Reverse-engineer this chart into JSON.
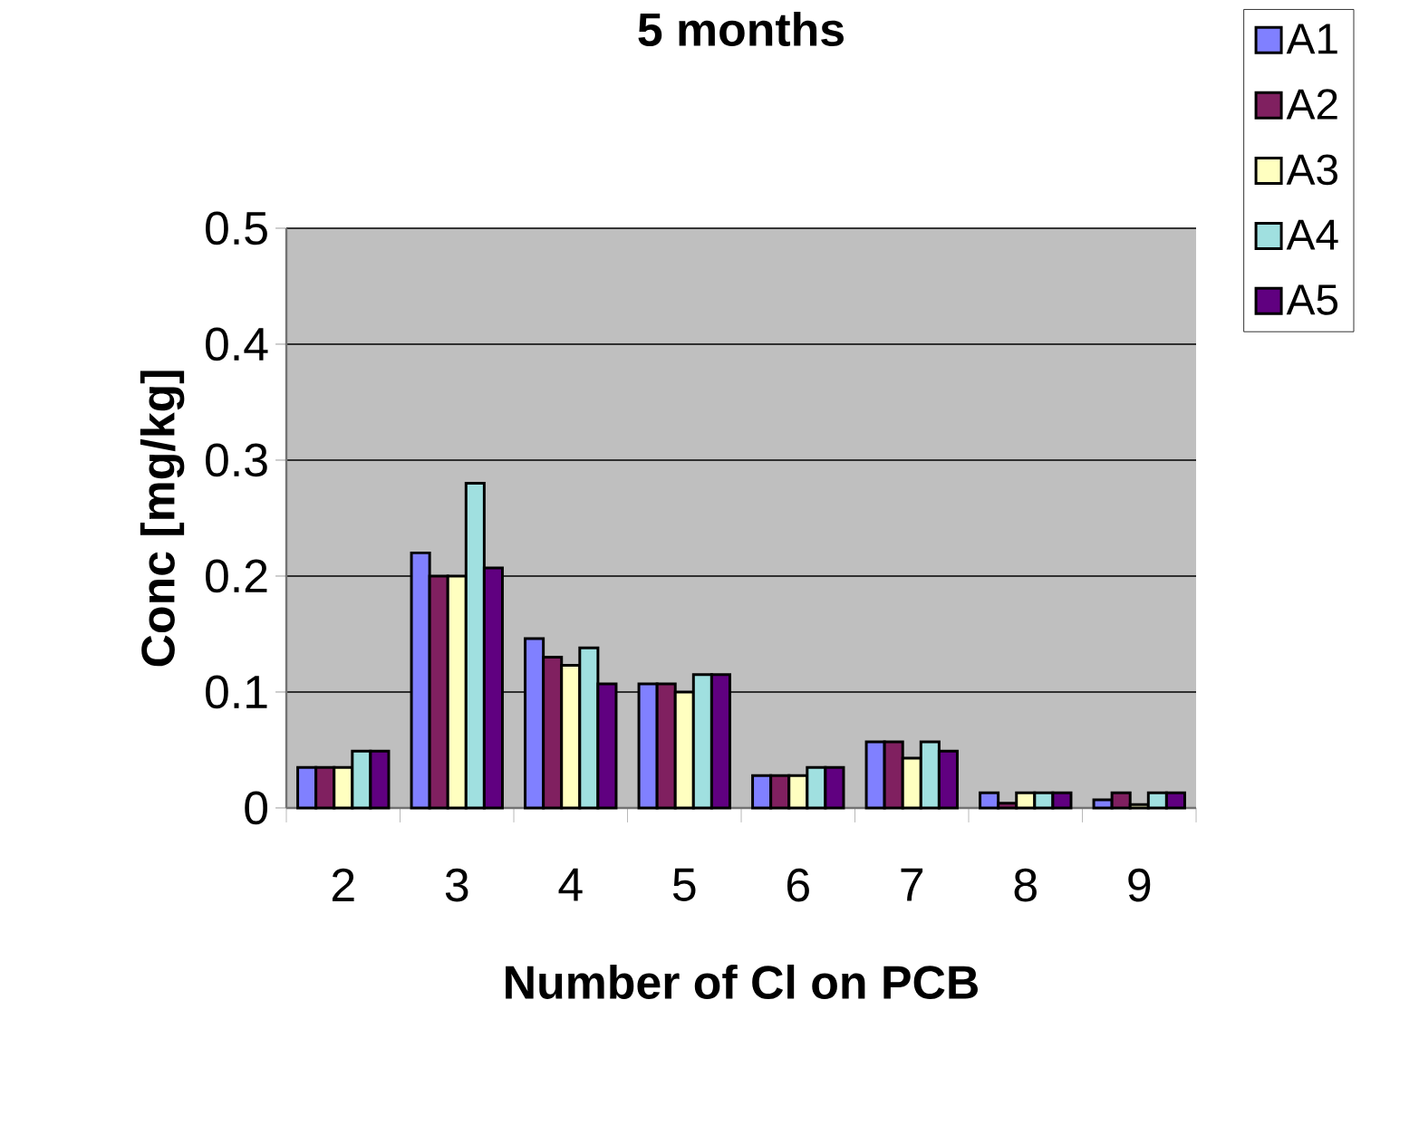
{
  "chart_data": {
    "type": "bar",
    "title": "5 months",
    "xlabel": "Number of Cl on PCB",
    "ylabel": "Conc [mg/kg]",
    "categories": [
      "2",
      "3",
      "4",
      "5",
      "6",
      "7",
      "8",
      "9"
    ],
    "series": [
      {
        "name": "A1",
        "color": "#8080ff",
        "values": [
          0.035,
          0.22,
          0.146,
          0.107,
          0.028,
          0.057,
          0.013,
          0.007
        ]
      },
      {
        "name": "A2",
        "color": "#802060",
        "values": [
          0.035,
          0.2,
          0.13,
          0.107,
          0.028,
          0.057,
          0.004,
          0.013
        ]
      },
      {
        "name": "A3",
        "color": "#ffffc0",
        "values": [
          0.035,
          0.2,
          0.123,
          0.1,
          0.028,
          0.043,
          0.013,
          0.003
        ]
      },
      {
        "name": "A4",
        "color": "#a0e0e0",
        "values": [
          0.049,
          0.28,
          0.138,
          0.115,
          0.035,
          0.057,
          0.013,
          0.013
        ]
      },
      {
        "name": "A5",
        "color": "#600080",
        "values": [
          0.049,
          0.207,
          0.107,
          0.115,
          0.035,
          0.049,
          0.013,
          0.013
        ]
      }
    ],
    "ylim": [
      0,
      0.5
    ],
    "yticks": [
      0,
      0.1,
      0.2,
      0.3,
      0.4,
      0.5
    ],
    "grid": "y",
    "legend": "right"
  }
}
